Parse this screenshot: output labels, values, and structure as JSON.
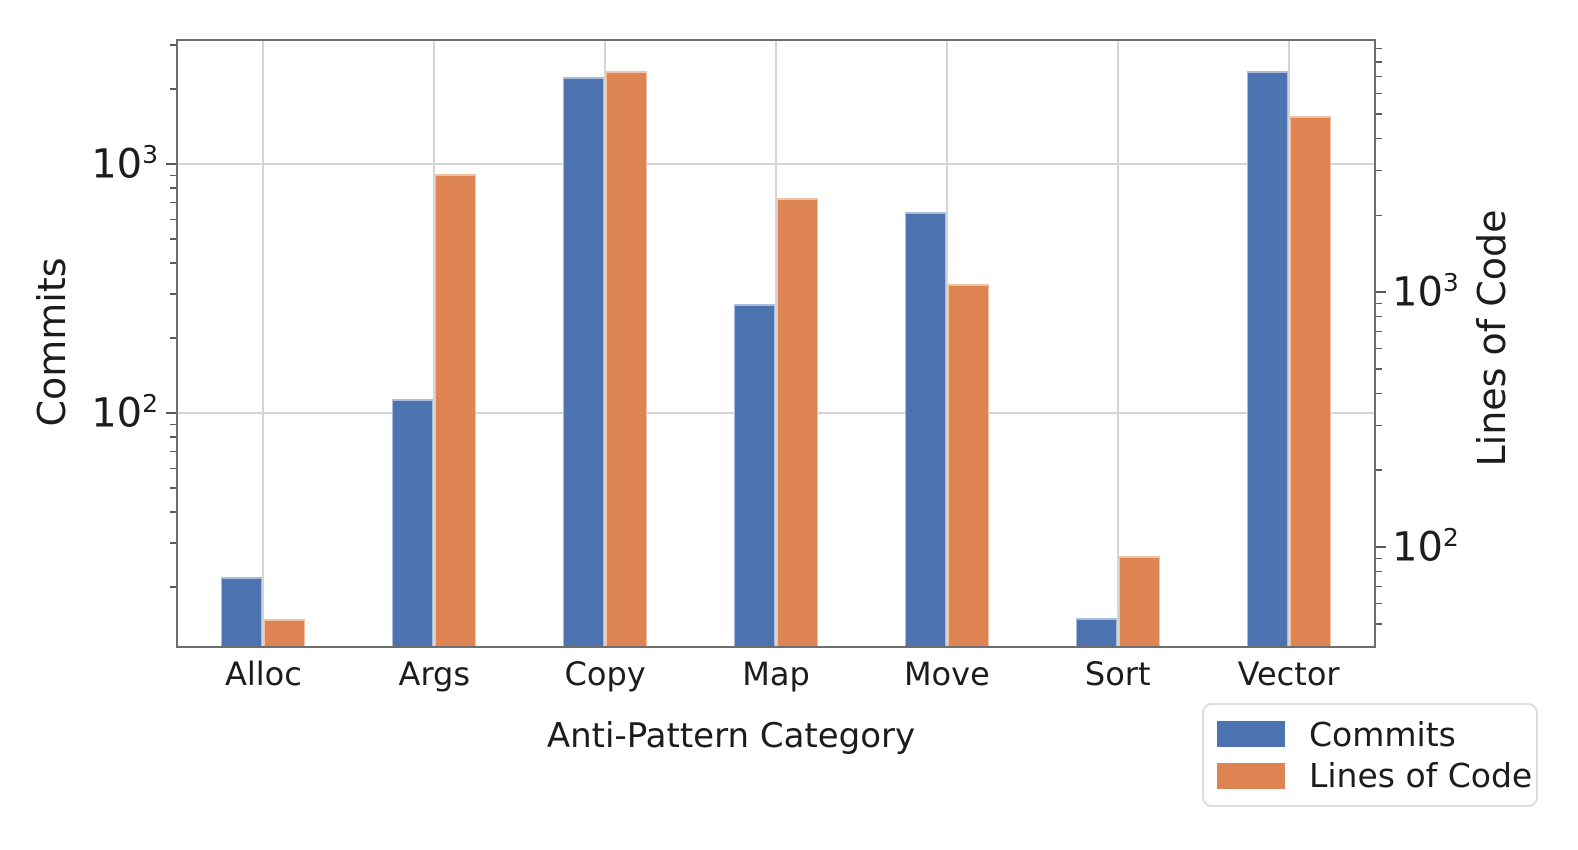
{
  "chart_data": {
    "type": "bar",
    "orientation": "vertical",
    "title": "",
    "xlabel": "Anti-Pattern Category",
    "categories": [
      "Alloc",
      "Args",
      "Copy",
      "Map",
      "Move",
      "Sort",
      "Vector"
    ],
    "series": [
      {
        "name": "Commits",
        "axis": "left",
        "color": "#4C72B0",
        "edge_color": "#a9bcd9",
        "values": [
          22,
          114,
          2230,
          273,
          640,
          15,
          2360
        ]
      },
      {
        "name": "Lines of Code",
        "axis": "right",
        "color": "#DD8452",
        "edge_color": "#efc2a5",
        "values": [
          52,
          2900,
          7350,
          2340,
          1075,
          92,
          4900
        ]
      }
    ],
    "left_axis": {
      "label": "Commits",
      "scale": "log",
      "range": [
        11.6,
        3120
      ],
      "major_ticks": [
        100,
        1000
      ]
    },
    "right_axis": {
      "label": "Lines of Code",
      "scale": "log",
      "range": [
        40.9,
        9650
      ],
      "major_ticks": [
        100,
        1000
      ]
    },
    "grid": {
      "horizontal": true,
      "vertical": true,
      "color": "#d5d5d5"
    },
    "legend": {
      "position": "lower-right",
      "entries": [
        {
          "label": "Commits",
          "color": "#4C72B0"
        },
        {
          "label": "Lines of Code",
          "color": "#DD8452"
        }
      ]
    }
  }
}
